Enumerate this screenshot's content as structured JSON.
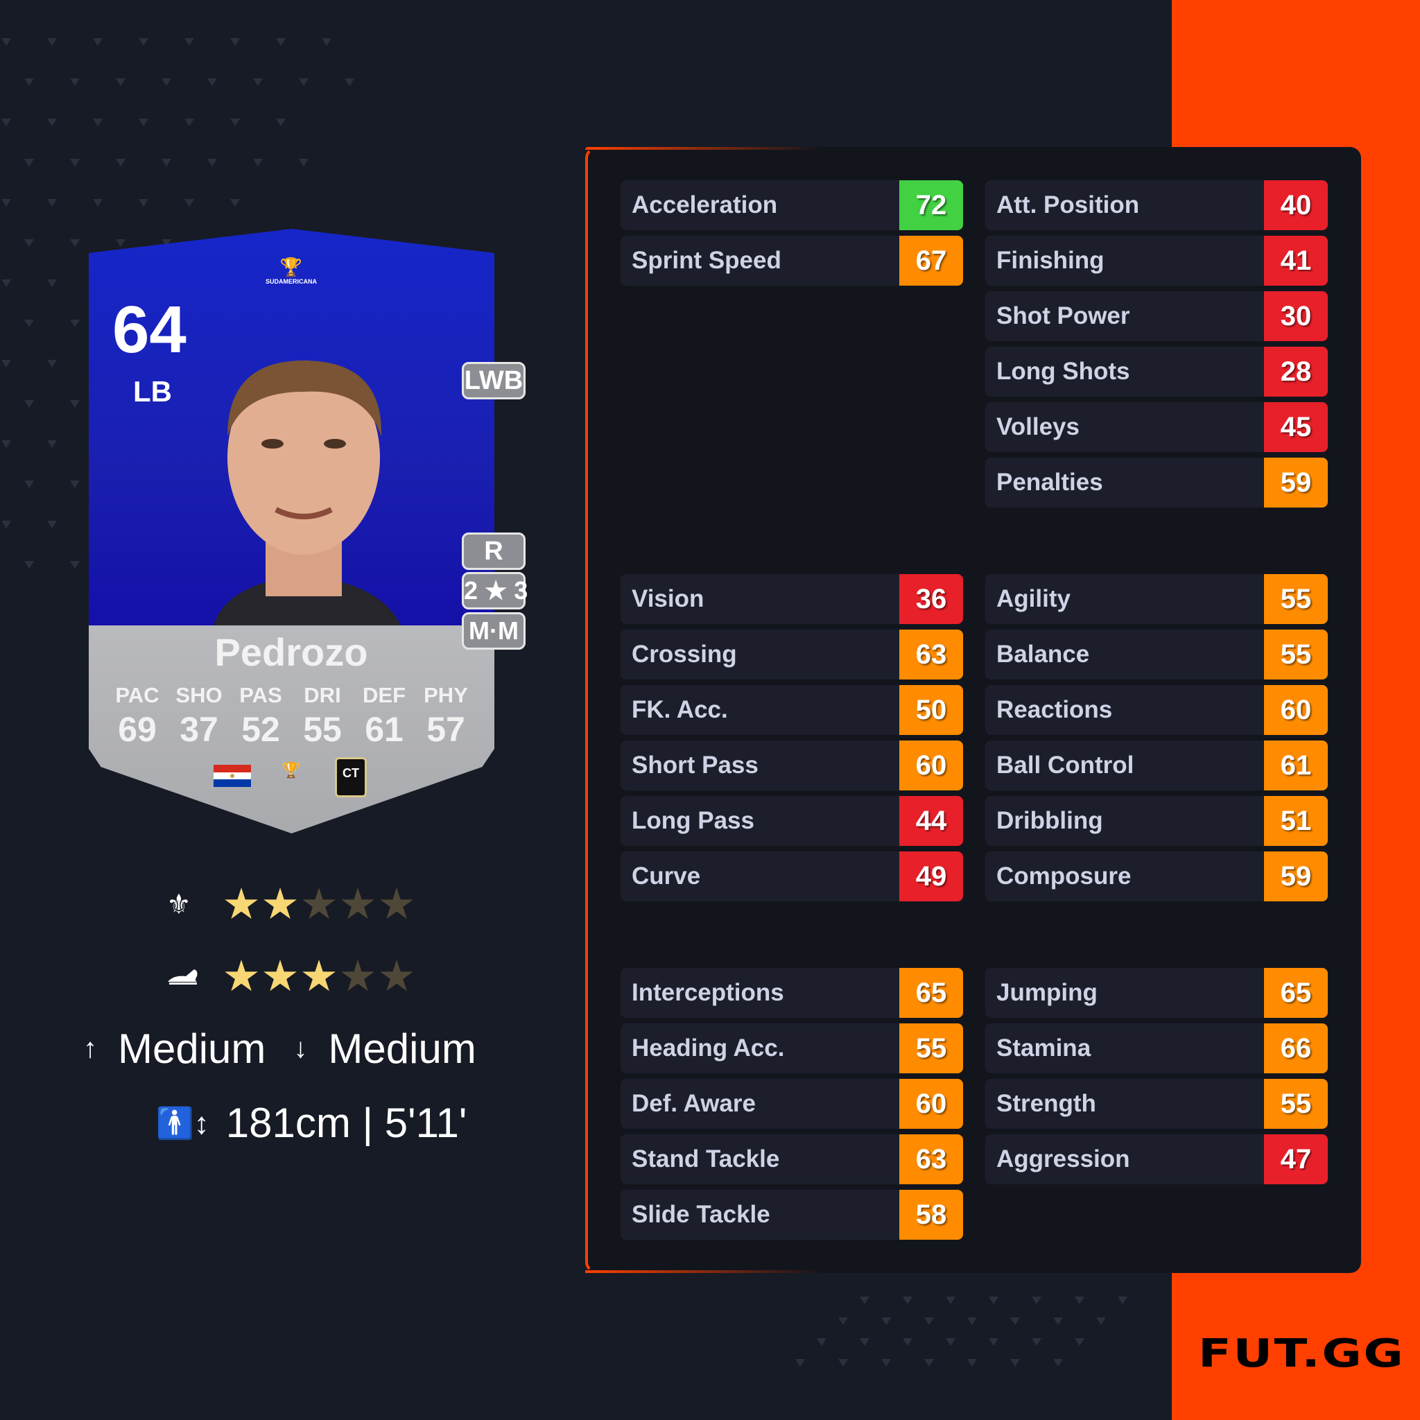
{
  "brand": {
    "logo_text": "FUT.GG",
    "accent": "#ff4000"
  },
  "card": {
    "rating": "64",
    "position": "LB",
    "league_text": "SUDAMERICANA",
    "name": "Pedrozo",
    "alt_positions": [
      "LWB"
    ],
    "foot": "R",
    "skill_weak": "2 ★ 3",
    "work_rate_short": "M·M",
    "face_stats": [
      {
        "key": "PAC",
        "value": "69"
      },
      {
        "key": "SHO",
        "value": "37"
      },
      {
        "key": "PAS",
        "value": "52"
      },
      {
        "key": "DRI",
        "value": "55"
      },
      {
        "key": "DEF",
        "value": "61"
      },
      {
        "key": "PHY",
        "value": "57"
      }
    ],
    "club_text": "CT",
    "nation": "Paraguay"
  },
  "ratings": {
    "skill_moves": {
      "icon": "jester-hat-icon",
      "stars": 2,
      "max": 5
    },
    "weak_foot": {
      "icon": "boot-icon",
      "stars": 3,
      "max": 5
    },
    "star_on_color": "#f7d774",
    "star_off_color": "#4f4838"
  },
  "work_rates": {
    "attack": "Medium",
    "defense": "Medium"
  },
  "height": "181cm | 5'11'",
  "colors": {
    "green": "#41d142",
    "orange": "#ff8c00",
    "red": "#e8202a"
  },
  "stat_groups": [
    {
      "left": [
        {
          "label": "Acceleration",
          "value": 72
        },
        {
          "label": "Sprint Speed",
          "value": 67
        }
      ],
      "right": [
        {
          "label": "Att. Position",
          "value": 40
        },
        {
          "label": "Finishing",
          "value": 41
        },
        {
          "label": "Shot Power",
          "value": 30
        },
        {
          "label": "Long Shots",
          "value": 28
        },
        {
          "label": "Volleys",
          "value": 45
        },
        {
          "label": "Penalties",
          "value": 59
        }
      ]
    },
    {
      "left": [
        {
          "label": "Vision",
          "value": 36
        },
        {
          "label": "Crossing",
          "value": 63
        },
        {
          "label": "FK. Acc.",
          "value": 50
        },
        {
          "label": "Short Pass",
          "value": 60
        },
        {
          "label": "Long Pass",
          "value": 44
        },
        {
          "label": "Curve",
          "value": 49
        }
      ],
      "right": [
        {
          "label": "Agility",
          "value": 55
        },
        {
          "label": "Balance",
          "value": 55
        },
        {
          "label": "Reactions",
          "value": 60
        },
        {
          "label": "Ball Control",
          "value": 61
        },
        {
          "label": "Dribbling",
          "value": 51
        },
        {
          "label": "Composure",
          "value": 59
        }
      ]
    },
    {
      "left": [
        {
          "label": "Interceptions",
          "value": 65
        },
        {
          "label": "Heading Acc.",
          "value": 55
        },
        {
          "label": "Def. Aware",
          "value": 60
        },
        {
          "label": "Stand Tackle",
          "value": 63
        },
        {
          "label": "Slide Tackle",
          "value": 58
        }
      ],
      "right": [
        {
          "label": "Jumping",
          "value": 65
        },
        {
          "label": "Stamina",
          "value": 66
        },
        {
          "label": "Strength",
          "value": 55
        },
        {
          "label": "Aggression",
          "value": 47
        }
      ]
    }
  ]
}
